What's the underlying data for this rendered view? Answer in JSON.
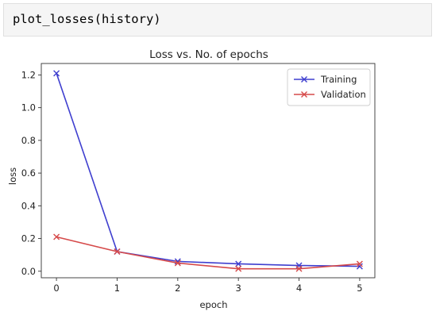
{
  "code_cell": {
    "source": "plot_losses(history)"
  },
  "chart_data": {
    "type": "line",
    "title": "Loss vs. No. of epochs",
    "xlabel": "epoch",
    "ylabel": "loss",
    "x": [
      0,
      1,
      2,
      3,
      4,
      5
    ],
    "xlim": [
      -0.25,
      5.25
    ],
    "ylim": [
      -0.04,
      1.27
    ],
    "xticks": [
      0,
      1,
      2,
      3,
      4,
      5
    ],
    "yticks": [
      0.0,
      0.2,
      0.4,
      0.6,
      0.8,
      1.0,
      1.2
    ],
    "legend_position": "top-right",
    "grid": false,
    "series": [
      {
        "name": "Training",
        "color": "#3f3fcf",
        "marker": "x",
        "values": [
          1.21,
          0.12,
          0.06,
          0.045,
          0.035,
          0.03
        ]
      },
      {
        "name": "Validation",
        "color": "#d64a4a",
        "marker": "x",
        "values": [
          0.21,
          0.12,
          0.05,
          0.015,
          0.015,
          0.045
        ]
      }
    ]
  }
}
